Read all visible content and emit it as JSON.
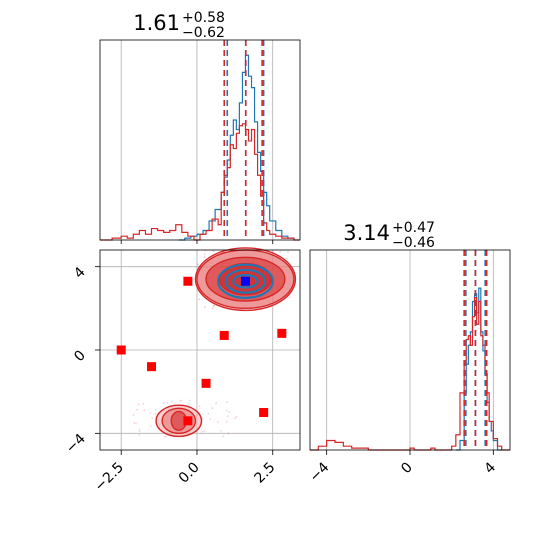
{
  "chart_data": {
    "type": "corner",
    "panels": [
      {
        "id": "hist-x",
        "type": "histogram",
        "title": {
          "value": "1.61",
          "upper": "+0.58",
          "lower": "−0.62"
        },
        "xlim": [
          -3.2,
          3.4
        ],
        "grid": true,
        "series": [
          {
            "name": "",
            "color": "#1f77b4",
            "step_x": [
              -0.6,
              -0.4,
              -0.2,
              0.0,
              0.2,
              0.4,
              0.6,
              0.8,
              0.9,
              1.0,
              1.1,
              1.2,
              1.3,
              1.4,
              1.5,
              1.6,
              1.7,
              1.8,
              1.9,
              2.0,
              2.1,
              2.2,
              2.3,
              2.4,
              2.6,
              2.8,
              3.0,
              3.2
            ],
            "step_y": [
              0.0,
              0.01,
              0.02,
              0.03,
              0.05,
              0.1,
              0.16,
              0.25,
              0.33,
              0.42,
              0.55,
              0.63,
              0.58,
              0.72,
              0.88,
              0.97,
              0.86,
              0.8,
              0.62,
              0.46,
              0.36,
              0.25,
              0.18,
              0.1,
              0.05,
              0.02,
              0.01
            ],
            "lines": [
              1.0,
              1.61,
              2.2
            ]
          },
          {
            "name": "",
            "color": "#d62728",
            "step_x": [
              -3.2,
              -3.0,
              -2.8,
              -2.5,
              -2.3,
              -2.1,
              -1.9,
              -1.7,
              -1.5,
              -1.3,
              -1.1,
              -0.9,
              -0.7,
              -0.5,
              -0.3,
              -0.1,
              0.1,
              0.3,
              0.5,
              0.7,
              0.8,
              0.9,
              1.0,
              1.1,
              1.2,
              1.3,
              1.4,
              1.5,
              1.6,
              1.7,
              1.8,
              1.9,
              2.0,
              2.1,
              2.2,
              2.3,
              2.4,
              2.6,
              2.8,
              3.0,
              3.2,
              3.4
            ],
            "step_y": [
              0.0,
              0.0,
              0.01,
              0.02,
              0.01,
              0.03,
              0.05,
              0.03,
              0.06,
              0.05,
              0.04,
              0.05,
              0.08,
              0.04,
              0.02,
              0.0,
              0.03,
              0.05,
              0.11,
              0.08,
              0.25,
              0.34,
              0.38,
              0.5,
              0.48,
              0.56,
              0.6,
              0.61,
              0.58,
              0.52,
              0.58,
              0.45,
              0.34,
              0.23,
              0.09,
              0.05,
              0.03,
              0.02,
              0.01,
              0.01,
              0.0
            ],
            "lines": [
              0.9,
              1.61,
              2.15
            ]
          }
        ]
      },
      {
        "id": "scatter-xy",
        "type": "scatter",
        "xlim": [
          -3.2,
          3.4
        ],
        "ylim": [
          -4.8,
          4.8
        ],
        "xticks": [
          -2.5,
          0.0,
          2.5
        ],
        "xtick_labels": [
          "−2.5",
          "0.0",
          "2.5"
        ],
        "yticks": [
          -4,
          0,
          4
        ],
        "ytick_labels": [
          "−4",
          "0",
          "4"
        ],
        "grid": true,
        "contours": [
          {
            "color": "#d62728",
            "center": [
              1.6,
              3.4
            ],
            "radii": [
              [
                0.85,
                0.75
              ],
              [
                1.3,
                1.05
              ],
              [
                1.6,
                1.4
              ],
              [
                1.65,
                1.5
              ]
            ]
          },
          {
            "color": "#1f77b4",
            "center": [
              1.6,
              3.3
            ],
            "radii": [
              [
                0.4,
                0.3
              ],
              [
                0.65,
                0.55
              ],
              [
                0.9,
                0.8
              ]
            ]
          },
          {
            "color": "#d62728",
            "center": [
              -0.6,
              -3.4
            ],
            "radii": [
              [
                0.25,
                0.45
              ],
              [
                0.55,
                0.6
              ],
              [
                0.75,
                0.75
              ]
            ]
          }
        ],
        "markers_red": {
          "color": "#ff0000",
          "x": [
            -2.5,
            -1.5,
            -0.3,
            0.9,
            2.8,
            0.3,
            2.2,
            -0.3
          ],
          "y": [
            0.0,
            -0.8,
            3.3,
            0.7,
            0.8,
            -1.6,
            -3.0,
            -3.4
          ]
        },
        "marker_blue": {
          "color": "#0000ff",
          "x": 1.6,
          "y": 3.3
        }
      },
      {
        "id": "hist-y",
        "type": "histogram",
        "title": {
          "value": "3.14",
          "upper": "+0.47",
          "lower": "−0.46"
        },
        "xlim": [
          -4.8,
          4.8
        ],
        "xticks": [
          -4,
          0,
          4
        ],
        "xtick_labels": [
          "−4",
          "0",
          "4"
        ],
        "grid": true,
        "series": [
          {
            "name": "",
            "color": "#1f77b4",
            "step_x": [
              2.2,
              2.4,
              2.6,
              2.7,
              2.8,
              2.9,
              3.0,
              3.1,
              3.2,
              3.3,
              3.4,
              3.5,
              3.6,
              3.7,
              3.8,
              3.9,
              4.0,
              4.2,
              4.4
            ],
            "step_y": [
              0.0,
              0.05,
              0.3,
              0.45,
              0.55,
              0.62,
              0.78,
              0.82,
              0.72,
              0.85,
              0.62,
              0.52,
              0.4,
              0.25,
              0.15,
              0.1,
              0.05,
              0.0
            ],
            "lines": [
              2.68,
              3.14,
              3.61
            ]
          },
          {
            "name": "",
            "color": "#d62728",
            "step_x": [
              -4.8,
              -4.4,
              -4.0,
              -3.6,
              -3.2,
              -2.8,
              -2.4,
              -2.0,
              -1.6,
              -1.2,
              -0.8,
              0.0,
              0.2,
              1.0,
              1.2,
              2.0,
              2.2,
              2.4,
              2.6,
              2.7,
              2.8,
              2.9,
              3.0,
              3.1,
              3.2,
              3.3,
              3.4,
              3.5,
              3.6,
              3.7,
              3.8,
              4.0,
              4.2,
              4.4,
              4.8
            ],
            "step_y": [
              0.0,
              0.02,
              0.05,
              0.04,
              0.02,
              0.01,
              0.01,
              0.0,
              0.0,
              0.0,
              0.0,
              0.01,
              0.0,
              0.01,
              0.0,
              0.02,
              0.08,
              0.3,
              0.45,
              0.58,
              0.6,
              0.55,
              0.7,
              0.8,
              0.66,
              0.78,
              0.6,
              0.55,
              0.4,
              0.3,
              0.15,
              0.06,
              0.02,
              0.0
            ],
            "lines": [
              2.6,
              3.14,
              3.68
            ]
          }
        ]
      }
    ]
  }
}
